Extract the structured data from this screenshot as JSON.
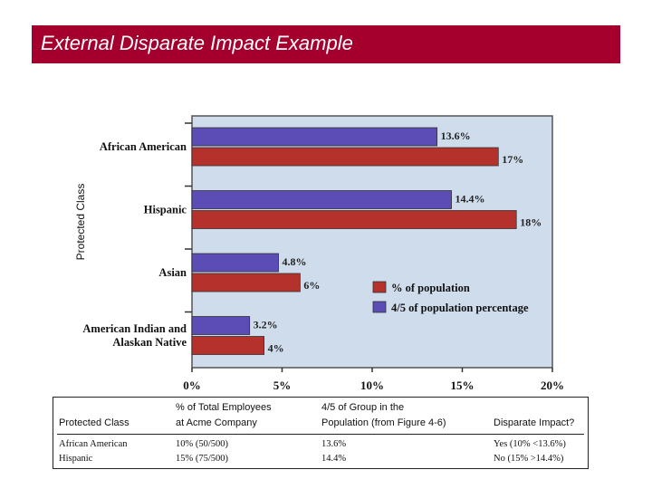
{
  "slide": {
    "title": "External Disparate Impact Example"
  },
  "chart_data": {
    "type": "bar",
    "orientation": "horizontal",
    "ylabel": "Protected Class",
    "categories": [
      "African American",
      "Hispanic",
      "Asian",
      "American Indian and Alaskan Native"
    ],
    "category_lines": [
      [
        "African American"
      ],
      [
        "Hispanic"
      ],
      [
        "Asian"
      ],
      [
        "American Indian and",
        "Alaskan Native"
      ]
    ],
    "series": [
      {
        "name": "4/5 of population percentage",
        "color": "#5b4db5",
        "values": [
          13.6,
          14.4,
          4.8,
          3.2
        ],
        "labels": [
          "13.6%",
          "14.4%",
          "4.8%",
          "3.2%"
        ]
      },
      {
        "name": "% of population",
        "color": "#b5322c",
        "values": [
          17,
          18,
          6,
          4
        ],
        "labels": [
          "17%",
          "18%",
          "6%",
          "4%"
        ]
      }
    ],
    "legend_order": [
      "% of population",
      "4/5 of population percentage"
    ],
    "xlim": [
      0,
      20
    ],
    "xticks": [
      "0%",
      "5%",
      "10%",
      "15%",
      "20%"
    ],
    "legend_position": "lower-right",
    "background": "#cfdcec"
  },
  "table": {
    "headers": {
      "class": "Protected Class",
      "employees": [
        "% of Total Employees",
        "at Acme Company"
      ],
      "group": [
        "4/5 of Group in the",
        "Population (from Figure 4-6)"
      ],
      "impact": "Disparate Impact?"
    },
    "rows": [
      {
        "class": "African American",
        "employees": "10% (50/500)",
        "group": "13.6%",
        "impact": "Yes (10% <13.6%)"
      },
      {
        "class": "Hispanic",
        "employees": "15% (75/500)",
        "group": "14.4%",
        "impact": "No (15% >14.4%)"
      }
    ]
  }
}
